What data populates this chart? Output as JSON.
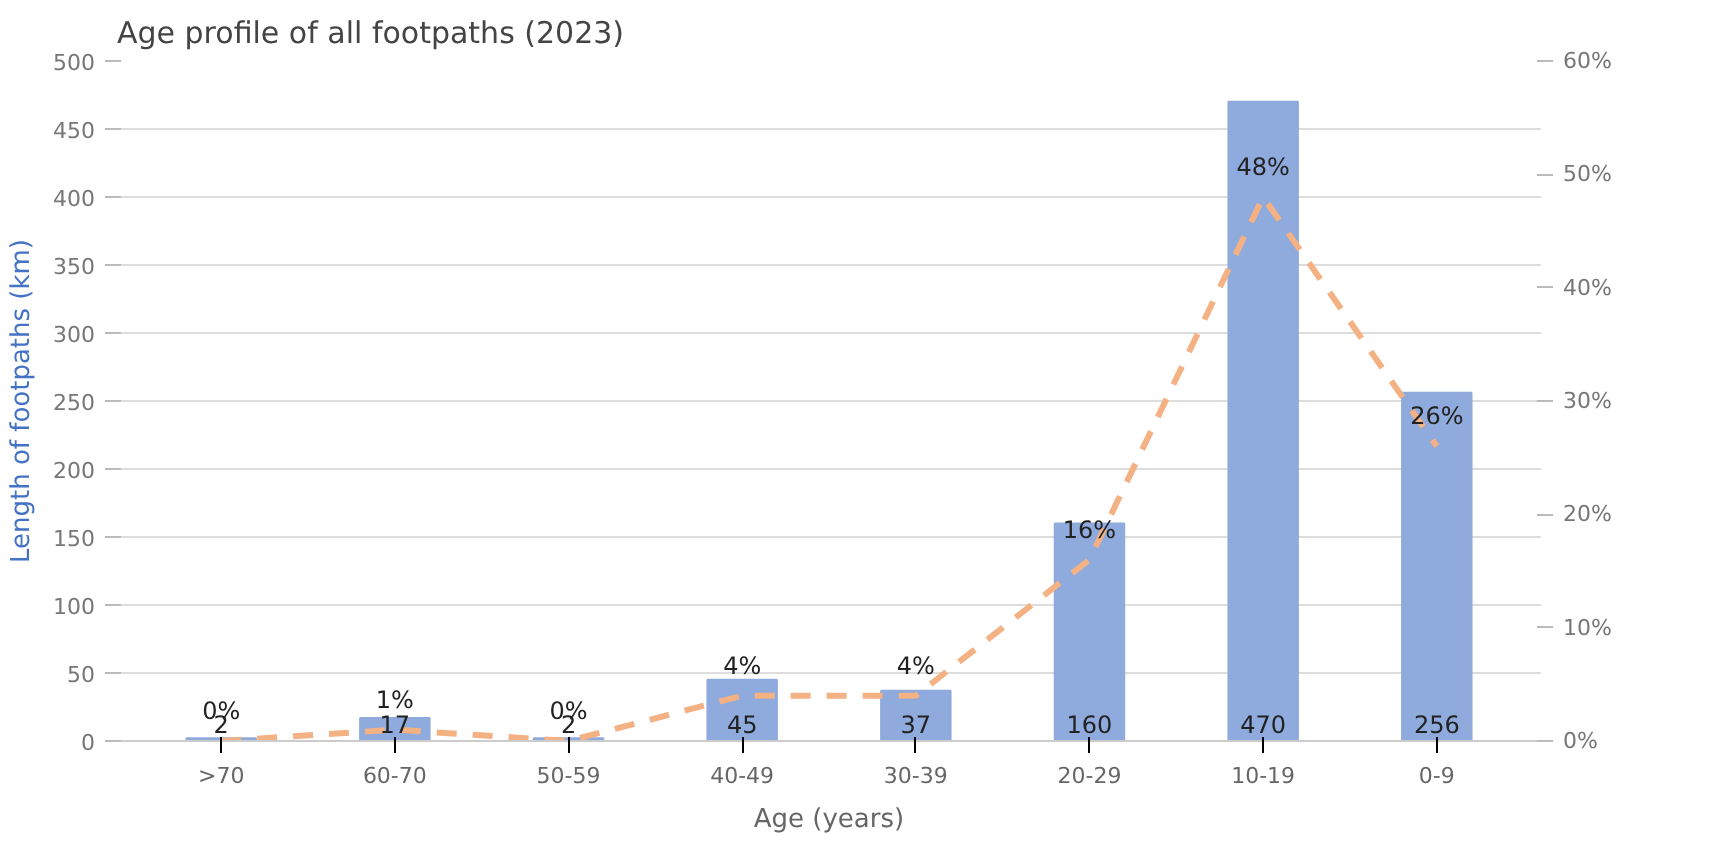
{
  "chart_data": {
    "type": "bar",
    "title": "Age profile of all footpaths (2023)",
    "xlabel": "Age (years)",
    "ylabel": "Length of footpaths (km)",
    "categories": [
      ">70",
      "60-70",
      "50-59",
      "40-49",
      "30-39",
      "20-29",
      "10-19",
      "0-9"
    ],
    "series": [
      {
        "color": "#8faadc",
        "values": [
          2,
          17,
          2,
          45,
          37,
          160,
          470,
          256
        ],
        "value_labels": [
          "2",
          "17",
          "2",
          "45",
          "37",
          "160",
          "470",
          "256"
        ]
      },
      {
        "type": "line",
        "axis": "y2",
        "color": "#f4b183",
        "line_style": "dashed",
        "values": [
          0,
          1,
          0,
          4,
          4,
          16,
          48,
          26
        ],
        "value_labels": [
          "0%",
          "1%",
          "0%",
          "4%",
          "4%",
          "16%",
          "48%",
          "26%"
        ]
      }
    ],
    "ylim": [
      0,
      500
    ],
    "yticks": [
      0,
      50,
      100,
      150,
      200,
      250,
      300,
      350,
      400,
      450,
      500
    ],
    "y2lim": [
      0,
      60
    ],
    "y2ticks": [
      {
        "value": 0,
        "label": "0%"
      },
      {
        "value": 10,
        "label": "10%"
      },
      {
        "value": 20,
        "label": "20%"
      },
      {
        "value": 30,
        "label": "30%"
      },
      {
        "value": 40,
        "label": "40%"
      },
      {
        "value": 50,
        "label": "50%"
      },
      {
        "value": 60,
        "label": "60%"
      }
    ],
    "grid": "y"
  }
}
